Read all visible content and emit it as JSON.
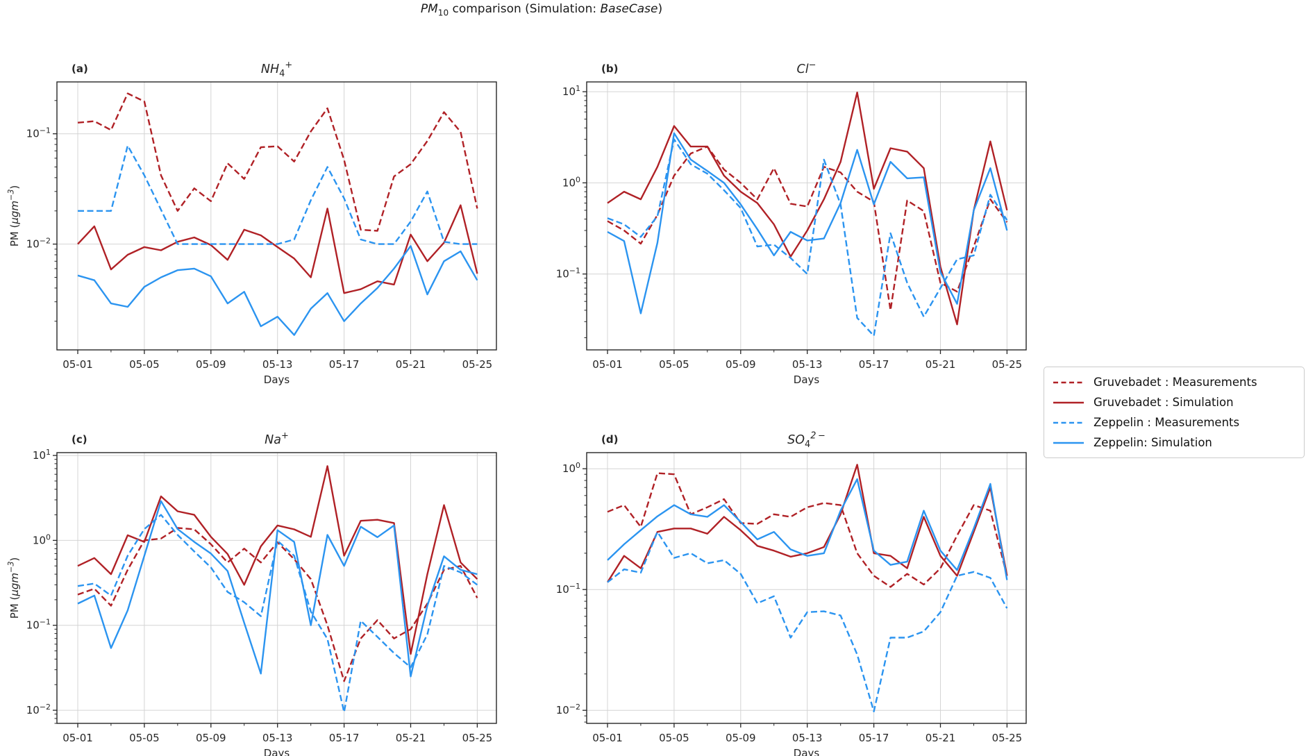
{
  "figure": {
    "title_parts": [
      [
        "i",
        "PM"
      ],
      [
        "sub",
        "10"
      ],
      [
        "n",
        " comparison (Simulation: "
      ],
      [
        "i",
        "BaseCase"
      ],
      [
        "n",
        ")"
      ]
    ]
  },
  "chart_data": {
    "type": "line",
    "title": "PM10 comparison (Simulation: BaseCase)",
    "xlabel": "Days",
    "ylabel": "PM (ugm-3)",
    "ylabel_parts": [
      [
        "n",
        "PM ("
      ],
      [
        "i",
        "μgm"
      ],
      [
        "sup",
        "−3"
      ],
      [
        "n",
        ")"
      ]
    ],
    "grid": true,
    "legend_position": "right-outside",
    "xlim": [
      -0.25,
      26.15
    ],
    "x_tick_days": [
      1,
      5,
      9,
      13,
      17,
      21,
      25
    ],
    "x_tick_labels": [
      "05-01",
      "05-05",
      "05-09",
      "05-13",
      "05-17",
      "05-21",
      "05-25"
    ],
    "x_minor_days": [
      3,
      7,
      11,
      15,
      19,
      23
    ],
    "colors": {
      "gruvebadet": "#b02126",
      "zeppelin": "#2b94f0"
    },
    "legend": [
      {
        "label": "Gruvebadet : Measurements",
        "station": "gruvebadet",
        "style": "dashed"
      },
      {
        "label": "Gruvebadet : Simulation",
        "station": "gruvebadet",
        "style": "solid"
      },
      {
        "label": "Zeppelin : Measurements",
        "station": "zeppelin",
        "style": "dashed"
      },
      {
        "label": "Zeppelin: Simulation",
        "station": "zeppelin",
        "style": "solid"
      }
    ],
    "subplots": [
      {
        "panel": "(a)",
        "title": "NH4+",
        "title_parts": [
          [
            "i",
            "NH"
          ],
          [
            "sub",
            "4"
          ],
          [
            "sup",
            "+"
          ]
        ],
        "ylim": [
          0.0011,
          0.295
        ],
        "ytick_exponents": [
          -1,
          -2
        ],
        "series": {
          "gruvebadet_measurements": [
            0.126,
            0.13,
            0.108,
            0.232,
            0.196,
            0.042,
            0.02,
            0.032,
            0.0245,
            0.054,
            0.039,
            0.0755,
            0.077,
            0.056,
            0.105,
            0.17,
            0.058,
            0.0135,
            0.0132,
            0.041,
            0.053,
            0.086,
            0.157,
            0.104,
            0.021
          ],
          "gruvebadet_simulation": [
            0.01,
            0.0145,
            0.0059,
            0.008,
            0.0094,
            0.0088,
            0.0105,
            0.0115,
            0.0098,
            0.0072,
            0.0135,
            0.012,
            0.0094,
            0.0074,
            0.005,
            0.021,
            0.0036,
            0.0039,
            0.0046,
            0.0043,
            0.0122,
            0.007,
            0.0103,
            0.0225,
            0.0054
          ],
          "zeppelin_measurements": [
            0.02,
            0.02,
            0.02,
            0.078,
            0.042,
            0.0205,
            0.01,
            0.01,
            0.01,
            0.01,
            0.01,
            0.01,
            0.01,
            0.011,
            0.025,
            0.05,
            0.026,
            0.011,
            0.01,
            0.01,
            0.016,
            0.03,
            0.0105,
            0.01,
            0.01
          ],
          "zeppelin_simulation": [
            0.0052,
            0.0047,
            0.0029,
            0.0027,
            0.0041,
            0.005,
            0.0058,
            0.006,
            0.0051,
            0.0029,
            0.0037,
            0.0018,
            0.0022,
            0.0015,
            0.0026,
            0.0036,
            0.002,
            0.0029,
            0.004,
            0.006,
            0.0096,
            0.0035,
            0.007,
            0.0086,
            0.0047
          ]
        }
      },
      {
        "panel": "(b)",
        "title": "Cl-",
        "title_parts": [
          [
            "i",
            "Cl"
          ],
          [
            "sup",
            "−"
          ]
        ],
        "ylim": [
          0.0147,
          12.8
        ],
        "ytick_exponents": [
          1,
          0,
          -1
        ],
        "series": {
          "gruvebadet_measurements": [
            0.38,
            0.3,
            0.215,
            0.445,
            1.2,
            2.1,
            2.5,
            1.4,
            1.0,
            0.66,
            1.45,
            0.59,
            0.55,
            1.5,
            1.3,
            0.8,
            0.62,
            0.04,
            0.64,
            0.49,
            0.08,
            0.064,
            0.2,
            0.66,
            0.37
          ],
          "gruvebadet_simulation": [
            0.6,
            0.8,
            0.66,
            1.5,
            4.2,
            2.5,
            2.5,
            1.2,
            0.8,
            0.6,
            0.35,
            0.155,
            0.3,
            0.66,
            1.7,
            9.8,
            0.86,
            2.4,
            2.2,
            1.45,
            0.12,
            0.028,
            0.5,
            2.85,
            0.5
          ],
          "zeppelin_measurements": [
            0.41,
            0.35,
            0.255,
            0.43,
            3.0,
            1.6,
            1.26,
            0.83,
            0.53,
            0.2,
            0.21,
            0.15,
            0.1,
            1.8,
            0.58,
            0.033,
            0.021,
            0.28,
            0.08,
            0.034,
            0.07,
            0.145,
            0.16,
            0.74,
            0.39
          ],
          "zeppelin_simulation": [
            0.29,
            0.23,
            0.037,
            0.22,
            3.5,
            1.8,
            1.35,
            1.0,
            0.58,
            0.31,
            0.16,
            0.29,
            0.233,
            0.245,
            0.6,
            2.3,
            0.58,
            1.7,
            1.12,
            1.15,
            0.105,
            0.047,
            0.5,
            1.45,
            0.3
          ]
        }
      },
      {
        "panel": "(c)",
        "title": "Na+",
        "title_parts": [
          [
            "i",
            "Na"
          ],
          [
            "sup",
            "+"
          ]
        ],
        "ylim": [
          0.007,
          10.8
        ],
        "ytick_exponents": [
          1,
          0,
          -1,
          -2
        ],
        "series": {
          "gruvebadet_measurements": [
            0.23,
            0.27,
            0.17,
            0.45,
            1.0,
            1.05,
            1.4,
            1.35,
            0.9,
            0.55,
            0.8,
            0.55,
            0.95,
            0.6,
            0.35,
            0.1,
            0.022,
            0.07,
            0.115,
            0.07,
            0.09,
            0.18,
            0.45,
            0.5,
            0.21
          ],
          "gruvebadet_simulation": [
            0.5,
            0.62,
            0.4,
            1.15,
            0.96,
            3.3,
            2.2,
            2.0,
            1.1,
            0.69,
            0.3,
            0.85,
            1.5,
            1.35,
            1.1,
            7.5,
            0.66,
            1.7,
            1.75,
            1.6,
            0.046,
            0.4,
            2.6,
            0.55,
            0.35
          ],
          "zeppelin_measurements": [
            0.29,
            0.31,
            0.224,
            0.66,
            1.36,
            2.0,
            1.16,
            0.74,
            0.48,
            0.247,
            0.187,
            0.128,
            0.99,
            0.66,
            0.145,
            0.069,
            0.0095,
            0.113,
            0.073,
            0.047,
            0.032,
            0.078,
            0.5,
            0.42,
            0.3
          ],
          "zeppelin_simulation": [
            0.18,
            0.224,
            0.054,
            0.15,
            0.66,
            2.9,
            1.36,
            0.96,
            0.7,
            0.435,
            0.107,
            0.027,
            1.32,
            0.96,
            0.1,
            1.16,
            0.5,
            1.45,
            1.09,
            1.5,
            0.025,
            0.17,
            0.65,
            0.45,
            0.4
          ]
        }
      },
      {
        "panel": "(d)",
        "title": "SO42-",
        "title_parts": [
          [
            "i",
            "SO"
          ],
          [
            "sub",
            "4"
          ],
          [
            "sup",
            "2 −"
          ]
        ],
        "ylim": [
          0.0078,
          1.36
        ],
        "ytick_exponents": [
          0,
          -1,
          -2
        ],
        "series": {
          "gruvebadet_measurements": [
            0.44,
            0.5,
            0.33,
            0.92,
            0.9,
            0.42,
            0.48,
            0.56,
            0.355,
            0.35,
            0.42,
            0.4,
            0.48,
            0.52,
            0.5,
            0.2,
            0.13,
            0.105,
            0.135,
            0.11,
            0.15,
            0.28,
            0.5,
            0.45,
            0.13
          ],
          "gruvebadet_simulation": [
            0.115,
            0.19,
            0.15,
            0.3,
            0.32,
            0.32,
            0.29,
            0.4,
            0.31,
            0.23,
            0.21,
            0.187,
            0.2,
            0.225,
            0.42,
            1.08,
            0.2,
            0.19,
            0.15,
            0.4,
            0.19,
            0.13,
            0.3,
            0.7,
            0.13
          ],
          "zeppelin_measurements": [
            0.115,
            0.147,
            0.138,
            0.3,
            0.183,
            0.2,
            0.165,
            0.175,
            0.135,
            0.077,
            0.088,
            0.04,
            0.065,
            0.066,
            0.061,
            0.029,
            0.0098,
            0.04,
            0.04,
            0.045,
            0.065,
            0.13,
            0.14,
            0.125,
            0.07
          ],
          "zeppelin_simulation": [
            0.175,
            0.237,
            0.31,
            0.404,
            0.5,
            0.42,
            0.4,
            0.5,
            0.363,
            0.26,
            0.3,
            0.215,
            0.19,
            0.2,
            0.45,
            0.82,
            0.21,
            0.16,
            0.17,
            0.45,
            0.21,
            0.145,
            0.32,
            0.75,
            0.12
          ]
        }
      }
    ]
  }
}
